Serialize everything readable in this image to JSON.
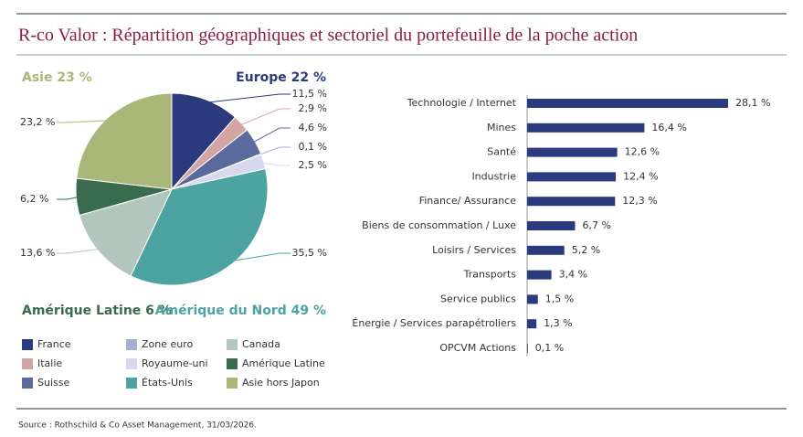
{
  "title": "R-co Valor : Répartition géographiques et sectoriel du portefeuille de la poche action",
  "source": "Source : Rothschild & Co Asset Management, 31/03/2026.",
  "chart_data": [
    {
      "type": "pie",
      "categories": [
        "France",
        "Italie",
        "Suisse",
        "Zone euro",
        "Royaume-uni",
        "États-Unis",
        "Canada",
        "Amérique Latine",
        "Asie hors Japon"
      ],
      "values": [
        11.5,
        2.9,
        4.6,
        0.1,
        2.5,
        35.5,
        13.6,
        6.2,
        23.2
      ],
      "value_labels": [
        "11,5 %",
        "2,9 %",
        "4,6 %",
        "0,1 %",
        "2,5 %",
        "35,5 %",
        "13,6 %",
        "6,2 %",
        "23,2 %"
      ],
      "colors": [
        "#2b3a7c",
        "#d4a5a5",
        "#5a6a9c",
        "#a9add2",
        "#d6d9ec",
        "#4da3a2",
        "#b3c6be",
        "#3b6b4e",
        "#a9b878"
      ],
      "annotations": [
        {
          "text": "Asie 23 %",
          "color": "#a9b878"
        },
        {
          "text": "Europe 22 %",
          "color": "#2b3a7c"
        },
        {
          "text": "Amérique Latine 6 %",
          "color": "#3b6b4e"
        },
        {
          "text": "Amérique du Nord 49 %",
          "color": "#4da3a2"
        }
      ]
    },
    {
      "type": "bar",
      "categories": [
        "Technologie / Internet",
        "Mines",
        "Santé",
        "Industrie",
        "Finance/ Assurance",
        "Biens de consommation / Luxe",
        "Loisirs / Services",
        "Transports",
        "Service publics",
        "Énergie / Services parapétroliers",
        "OPCVM Actions"
      ],
      "values": [
        28.1,
        16.4,
        12.6,
        12.4,
        12.3,
        6.7,
        5.2,
        3.4,
        1.5,
        1.3,
        0.1
      ],
      "value_labels": [
        "28,1 %",
        "16,4 %",
        "12,6 %",
        "12,4 %",
        "12,3 %",
        "6,7 %",
        "5,2 %",
        "3,4 %",
        "1,5 %",
        "1,3 %",
        "0,1 %"
      ],
      "color": "#2b3a7c"
    }
  ]
}
